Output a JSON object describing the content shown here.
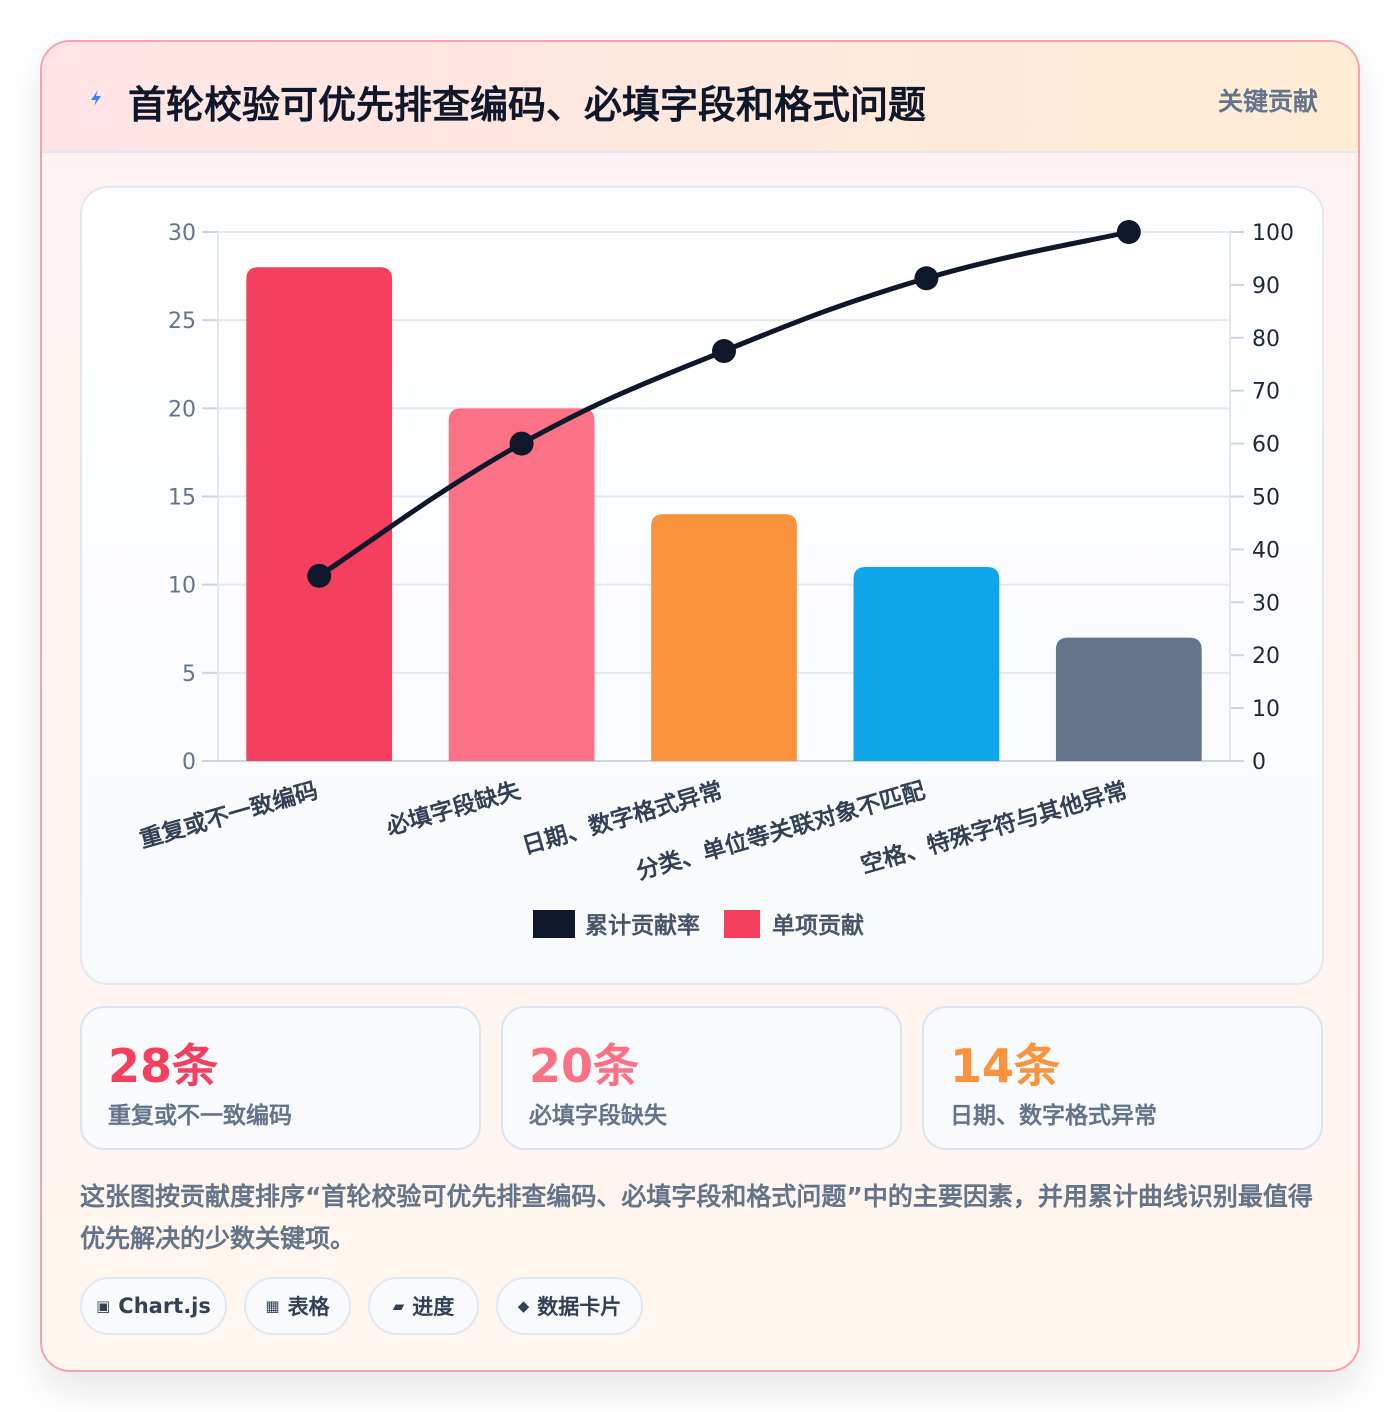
{
  "header": {
    "icon": "lightning-icon",
    "title": "首轮校验可优先排查编码、必填字段和格式问题",
    "badge": "关键贡献"
  },
  "chart_data": {
    "type": "bar",
    "categories": [
      "重复或不一致编码",
      "必填字段缺失",
      "日期、数字格式异常",
      "分类、单位等关联对象不匹配",
      "空格、特殊字符与其他异常"
    ],
    "series": [
      {
        "name": "单项贡献",
        "type": "bar",
        "axis": "left",
        "values": [
          28,
          20,
          14,
          11,
          7
        ],
        "colors": [
          "#f43f5e",
          "#fb7185",
          "#fb923c",
          "#0ea5e9",
          "#64748b"
        ]
      },
      {
        "name": "累计贡献率",
        "type": "line",
        "axis": "right",
        "values": [
          35,
          60,
          77.5,
          91.25,
          100
        ],
        "color": "#0f172a"
      }
    ],
    "y_left": {
      "min": 0,
      "max": 30,
      "ticks": [
        0,
        5,
        10,
        15,
        20,
        25,
        30
      ]
    },
    "y_right": {
      "min": 0,
      "max": 100,
      "ticks": [
        0,
        10,
        20,
        30,
        40,
        50,
        60,
        70,
        80,
        90,
        100
      ]
    },
    "grid": true,
    "legend": {
      "position": "bottom",
      "entries": [
        "累计贡献率",
        "单项贡献"
      ],
      "colors": [
        "#0f172a",
        "#f43f5e"
      ]
    }
  },
  "stats": [
    {
      "value": "28条",
      "label": "重复或不一致编码",
      "color": "#f43f5e"
    },
    {
      "value": "20条",
      "label": "必填字段缺失",
      "color": "#fb7185"
    },
    {
      "value": "14条",
      "label": "日期、数字格式异常",
      "color": "#fb923c"
    }
  ],
  "description": "这张图按贡献度排序“首轮校验可优先排查编码、必填字段和格式问题”中的主要因素，并用累计曲线识别最值得优先解决的少数关键项。",
  "chips": [
    {
      "icon": "▣",
      "icon_name": "chart-icon",
      "label": "Chart.js"
    },
    {
      "icon": "▦",
      "icon_name": "table-icon",
      "label": "表格"
    },
    {
      "icon": "▰",
      "icon_name": "progress-icon",
      "label": "进度"
    },
    {
      "icon": "◆",
      "icon_name": "data-card-icon",
      "label": "数据卡片"
    }
  ]
}
